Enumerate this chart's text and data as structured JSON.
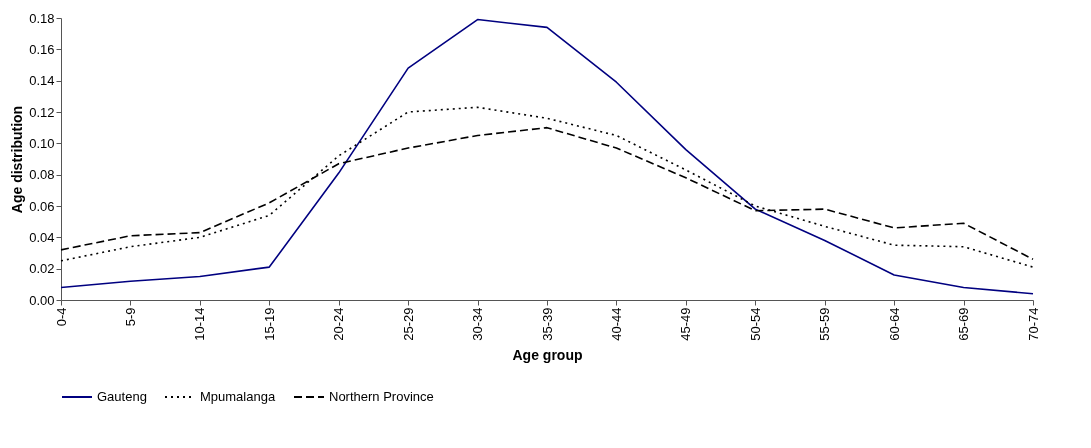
{
  "chart_data": {
    "type": "line",
    "xlabel": "Age group",
    "ylabel": "Age distribution",
    "categories": [
      "0-4",
      "5-9",
      "10-14",
      "15-19",
      "20-24",
      "25-29",
      "30-34",
      "35-39",
      "40-44",
      "45-49",
      "50-54",
      "55-59",
      "60-64",
      "65-69",
      "70-74"
    ],
    "series": [
      {
        "name": "Gauteng",
        "color": "#000080",
        "line_style": "solid",
        "values": [
          0.008,
          0.012,
          0.015,
          0.021,
          0.081,
          0.148,
          0.179,
          0.174,
          0.139,
          0.096,
          0.058,
          0.038,
          0.016,
          0.008,
          0.004
        ]
      },
      {
        "name": "Mpumalanga",
        "color": "#000000",
        "line_style": "dotted",
        "values": [
          0.025,
          0.034,
          0.04,
          0.054,
          0.092,
          0.12,
          0.123,
          0.116,
          0.105,
          0.083,
          0.06,
          0.047,
          0.035,
          0.034,
          0.021
        ]
      },
      {
        "name": "Northern Province",
        "color": "#000000",
        "line_style": "dashed",
        "values": [
          0.032,
          0.041,
          0.043,
          0.062,
          0.087,
          0.097,
          0.105,
          0.11,
          0.097,
          0.078,
          0.057,
          0.058,
          0.046,
          0.049,
          0.026
        ]
      }
    ],
    "ylim": [
      0,
      0.18
    ],
    "yticks": [
      {
        "value": 0,
        "label": "0.00"
      },
      {
        "value": 0.02,
        "label": "0.02"
      },
      {
        "value": 0.04,
        "label": "0.04"
      },
      {
        "value": 0.06,
        "label": "0.06"
      },
      {
        "value": 0.08,
        "label": "0.08"
      },
      {
        "value": 0.1,
        "label": "0.10"
      },
      {
        "value": 0.12,
        "label": "0.12"
      },
      {
        "value": 0.14,
        "label": "0.14"
      },
      {
        "value": 0.16,
        "label": "0.16"
      },
      {
        "value": 0.18,
        "label": "0.18"
      }
    ],
    "grid": false,
    "legend": "bottom",
    "marker": "none"
  }
}
